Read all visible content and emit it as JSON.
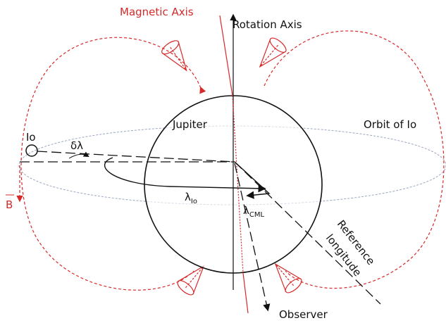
{
  "labels": {
    "magnetic_axis": "Magnetic Axis",
    "rotation_axis": "Rotation Axis",
    "planet": "Jupiter",
    "orbit": "Orbit of Io",
    "moon": "Io",
    "delta_lambda": "δλ",
    "lambda": "λ",
    "lambda_io_sub": "Io",
    "lambda_cml_sub": "CML",
    "reference_line1": "Reference",
    "reference_line2": "longitude",
    "observer": "Observer",
    "field": "B"
  }
}
